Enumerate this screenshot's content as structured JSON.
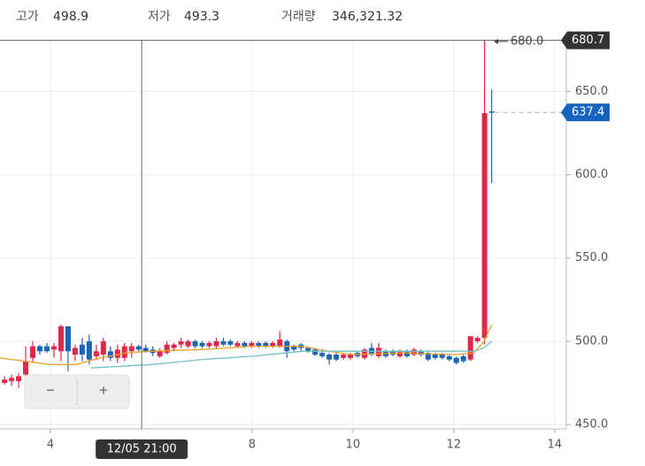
{
  "header": [
    {
      "label": "고가",
      "value": "498.9"
    },
    {
      "label": "저가",
      "value": "493.3"
    },
    {
      "label": "거래량",
      "value": "346,321.32"
    }
  ],
  "controls": {
    "zoom_out": "−",
    "zoom_in": "+"
  },
  "chart_data": {
    "type": "candlestick",
    "x": [
      3.09,
      3.23,
      3.37,
      3.51,
      3.65,
      3.79,
      3.93,
      4.07,
      4.21,
      4.35,
      4.49,
      4.63,
      4.77,
      4.91,
      5.05,
      5.19,
      5.33,
      5.47,
      5.61,
      5.75,
      5.89,
      6.03,
      6.17,
      6.31,
      6.45,
      6.59,
      6.73,
      6.87,
      7.01,
      7.15,
      7.29,
      7.43,
      7.57,
      7.71,
      7.85,
      7.99,
      8.13,
      8.27,
      8.41,
      8.55,
      8.69,
      8.83,
      8.97,
      9.11,
      9.25,
      9.39,
      9.53,
      9.67,
      9.81,
      9.95,
      10.09,
      10.23,
      10.37,
      10.51,
      10.65,
      10.79,
      10.93,
      11.07,
      11.21,
      11.35,
      11.49,
      11.63,
      11.77,
      11.91,
      12.05,
      12.19,
      12.33,
      12.47,
      12.61,
      12.75
    ],
    "open": [
      475,
      476,
      476,
      480,
      490,
      497,
      497,
      495,
      494,
      509,
      492,
      498,
      500,
      491,
      492,
      494,
      490,
      490,
      494,
      497,
      496,
      495,
      491,
      493,
      496,
      498,
      497,
      500,
      499,
      497,
      497,
      500,
      500,
      497,
      499,
      497,
      499,
      499,
      497,
      497,
      500,
      497,
      498,
      496,
      495,
      493,
      492,
      492,
      490,
      490,
      493,
      490,
      496,
      491,
      494,
      494,
      491,
      494,
      492,
      494,
      493,
      492,
      492,
      491,
      490,
      491,
      489,
      500,
      502,
      638
    ],
    "high": [
      479,
      480,
      481,
      497,
      500,
      498,
      499,
      499,
      510,
      509,
      498,
      502,
      504,
      498,
      502,
      497,
      498,
      499,
      499,
      498,
      498,
      497,
      496,
      500,
      499,
      502,
      501,
      501,
      500,
      500,
      502,
      502,
      501,
      500,
      500,
      500,
      500,
      500,
      500,
      506,
      501,
      498,
      499,
      497,
      496,
      494,
      493,
      493,
      493,
      493,
      494,
      496,
      499,
      499,
      495,
      495,
      495,
      495,
      496,
      495,
      494,
      493,
      493,
      492,
      491,
      492,
      503,
      503,
      680.7,
      651
    ],
    "low": [
      474,
      473,
      472,
      478,
      487,
      492,
      493,
      490,
      488,
      482,
      488,
      488,
      486,
      489,
      488,
      488,
      487,
      488,
      490,
      494,
      493,
      491,
      490,
      492,
      494,
      496,
      496,
      496,
      496,
      496,
      496,
      497,
      497,
      496,
      496,
      496,
      496,
      496,
      496,
      496,
      490,
      494,
      494,
      493,
      491,
      490,
      486,
      488,
      489,
      489,
      490,
      489,
      491,
      490,
      490,
      491,
      490,
      490,
      491,
      491,
      488,
      489,
      489,
      488,
      486,
      487,
      488,
      499,
      498,
      595
    ],
    "close": [
      477,
      478,
      479,
      488,
      497,
      494,
      494,
      497,
      509,
      494,
      496,
      492,
      489,
      494,
      500,
      490,
      495,
      497,
      497,
      495,
      494,
      493,
      494,
      498,
      498,
      500,
      500,
      497,
      497,
      499,
      500,
      498,
      498,
      499,
      497,
      499,
      497,
      497,
      499,
      501,
      494,
      495,
      496,
      494,
      492,
      491,
      489,
      489,
      492,
      492,
      491,
      495,
      492,
      496,
      491,
      492,
      494,
      491,
      495,
      492,
      489,
      490,
      490,
      489,
      487,
      488,
      503,
      502,
      637,
      637.4
    ],
    "up_color": "#e0284a",
    "down_color": "#1e64b4",
    "series": [
      {
        "color": "#f0a030",
        "x": [
          3.0,
          4.0,
          4.5,
          5.0,
          5.5,
          6.0,
          7.0,
          8.0,
          9.0,
          9.5,
          10.0,
          11.0,
          12.0,
          12.4,
          12.6,
          12.75
        ],
        "values": [
          490,
          486,
          486,
          490,
          493,
          494,
          495,
          497,
          497,
          494,
          492,
          493,
          492,
          493,
          500,
          510
        ]
      },
      {
        "color": "#72c2c4",
        "x": [
          4.8,
          6.0,
          7.0,
          8.0,
          9.0,
          10.0,
          11.0,
          12.0,
          12.4,
          12.6,
          12.75
        ],
        "values": [
          484,
          486,
          489,
          491,
          494,
          494,
          494,
          494,
          494,
          496,
          500
        ]
      }
    ],
    "xlim": [
      3,
      14.23
    ],
    "ylim": [
      447.4,
      681
    ],
    "xticks": [
      4,
      8,
      10,
      12,
      14
    ],
    "yticks": [
      {
        "value": 450,
        "label": "450.0"
      },
      {
        "value": 500,
        "label": "500.0"
      },
      {
        "value": 550,
        "label": "550.0"
      },
      {
        "value": 600,
        "label": "600.0"
      },
      {
        "value": 650,
        "label": "650.0"
      }
    ],
    "grid": true,
    "high_tag": 680.7,
    "current_tag": 637.4,
    "high_marker": {
      "value": 680,
      "label": "680.0"
    },
    "crosshair_x": {
      "value": 5.81,
      "label": "12/05 21:00"
    }
  }
}
